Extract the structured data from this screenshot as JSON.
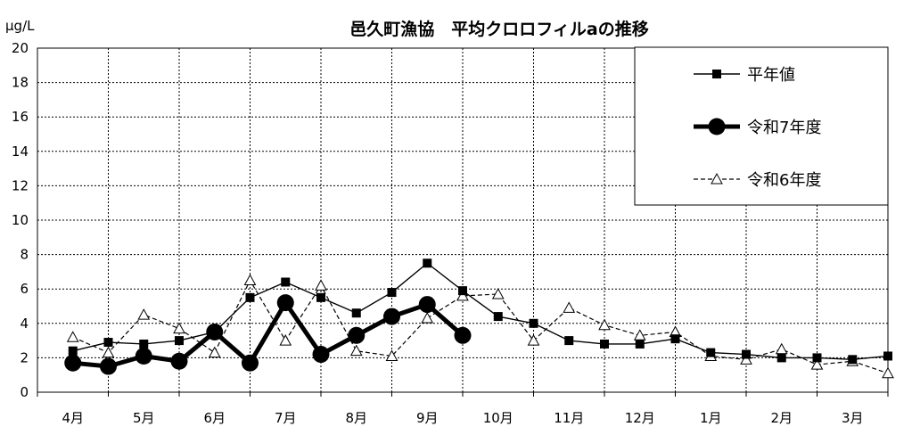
{
  "chart_data": {
    "type": "line",
    "title": "邑久町漁協　平均クロロフィルaの推移",
    "ylabel": "μg/L",
    "xlabel": "",
    "ylim": [
      0,
      20
    ],
    "y_ticks": [
      "0",
      "2",
      "4",
      "6",
      "8",
      "10",
      "12",
      "14",
      "16",
      "18",
      "20"
    ],
    "months": [
      "4月",
      "5月",
      "6月",
      "7月",
      "8月",
      "9月",
      "10月",
      "11月",
      "12月",
      "1月",
      "2月",
      "3月"
    ],
    "grid": true,
    "legend_position": "top-right",
    "series": [
      {
        "name": "平年値",
        "style": "solid-square",
        "color": "#000000",
        "points": [
          {
            "x": 0.0,
            "y": 2.4
          },
          {
            "x": 0.5,
            "y": 2.9
          },
          {
            "x": 1.0,
            "y": 2.8
          },
          {
            "x": 1.5,
            "y": 3.0
          },
          {
            "x": 2.0,
            "y": 3.5
          },
          {
            "x": 2.5,
            "y": 5.5
          },
          {
            "x": 3.0,
            "y": 6.4
          },
          {
            "x": 3.5,
            "y": 5.5
          },
          {
            "x": 4.0,
            "y": 4.6
          },
          {
            "x": 4.5,
            "y": 5.8
          },
          {
            "x": 5.0,
            "y": 7.5
          },
          {
            "x": 5.5,
            "y": 5.9
          },
          {
            "x": 6.0,
            "y": 4.4
          },
          {
            "x": 6.5,
            "y": 4.0
          },
          {
            "x": 7.0,
            "y": 3.0
          },
          {
            "x": 7.5,
            "y": 2.8
          },
          {
            "x": 8.0,
            "y": 2.8
          },
          {
            "x": 8.5,
            "y": 3.1
          },
          {
            "x": 9.0,
            "y": 2.3
          },
          {
            "x": 9.5,
            "y": 2.2
          },
          {
            "x": 10.0,
            "y": 2.0
          },
          {
            "x": 10.5,
            "y": 2.0
          },
          {
            "x": 11.0,
            "y": 1.9
          },
          {
            "x": 11.5,
            "y": 2.1
          }
        ]
      },
      {
        "name": "令和7年度",
        "style": "bold-circle",
        "color": "#000000",
        "points": [
          {
            "x": 0.0,
            "y": 1.7
          },
          {
            "x": 0.5,
            "y": 1.5
          },
          {
            "x": 1.0,
            "y": 2.1
          },
          {
            "x": 1.5,
            "y": 1.8
          },
          {
            "x": 2.0,
            "y": 3.5
          },
          {
            "x": 2.5,
            "y": 1.7
          },
          {
            "x": 3.0,
            "y": 5.2
          },
          {
            "x": 3.5,
            "y": 2.2
          },
          {
            "x": 4.0,
            "y": 3.3
          },
          {
            "x": 4.5,
            "y": 4.4
          },
          {
            "x": 5.0,
            "y": 5.1
          },
          {
            "x": 5.5,
            "y": 3.3
          }
        ]
      },
      {
        "name": "令和6年度",
        "style": "dashed-triangle",
        "color": "#000000",
        "points": [
          {
            "x": 0.0,
            "y": 3.2
          },
          {
            "x": 0.5,
            "y": 2.3
          },
          {
            "x": 1.0,
            "y": 4.5
          },
          {
            "x": 1.5,
            "y": 3.7
          },
          {
            "x": 2.0,
            "y": 2.3
          },
          {
            "x": 2.5,
            "y": 6.5
          },
          {
            "x": 3.0,
            "y": 3.0
          },
          {
            "x": 3.5,
            "y": 6.2
          },
          {
            "x": 4.0,
            "y": 2.4
          },
          {
            "x": 4.5,
            "y": 2.1
          },
          {
            "x": 5.0,
            "y": 4.3
          },
          {
            "x": 5.5,
            "y": 5.6
          },
          {
            "x": 6.0,
            "y": 5.7
          },
          {
            "x": 6.5,
            "y": 3.0
          },
          {
            "x": 7.0,
            "y": 4.9
          },
          {
            "x": 7.5,
            "y": 3.9
          },
          {
            "x": 8.0,
            "y": 3.3
          },
          {
            "x": 8.5,
            "y": 3.5
          },
          {
            "x": 9.0,
            "y": 2.1
          },
          {
            "x": 9.5,
            "y": 1.9
          },
          {
            "x": 10.0,
            "y": 2.5
          },
          {
            "x": 10.5,
            "y": 1.6
          },
          {
            "x": 11.0,
            "y": 1.8
          },
          {
            "x": 11.5,
            "y": 1.1
          }
        ]
      }
    ]
  }
}
